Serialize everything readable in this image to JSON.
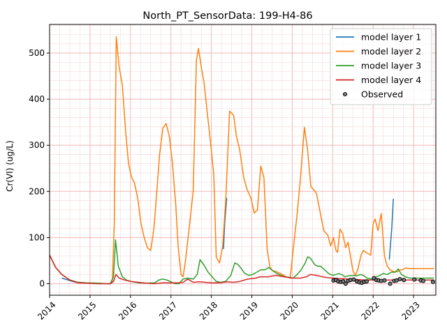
{
  "chart_data": {
    "type": "line",
    "title": "North_PT_SensorData: 199-H4-86",
    "xlabel": "",
    "ylabel": "Cr(VI) (ug/L)",
    "xlim": [
      2014.0,
      2023.55
    ],
    "ylim": [
      -25,
      562
    ],
    "x_ticks": [
      2014,
      2015,
      2016,
      2017,
      2018,
      2019,
      2020,
      2021,
      2022,
      2023
    ],
    "x_tick_labels": [
      "2014",
      "2015",
      "2016",
      "2017",
      "2018",
      "2019",
      "2020",
      "2021",
      "2022",
      "2023"
    ],
    "y_ticks": [
      0,
      100,
      200,
      300,
      400,
      500
    ],
    "y_tick_labels": [
      "0",
      "100",
      "200",
      "300",
      "400",
      "500"
    ],
    "grid": true,
    "legend_position": "top-right",
    "series": [
      {
        "name": "model layer 1",
        "color": "#1f77b4",
        "segments": [
          [
            [
              2014.3,
              12
            ],
            [
              2014.45,
              8
            ],
            [
              2014.6,
              4
            ],
            [
              2014.7,
              2
            ]
          ],
          [
            [
              2018.3,
              75
            ],
            [
              2018.33,
              130
            ],
            [
              2018.38,
              186
            ]
          ],
          [
            [
              2022.4,
              52
            ],
            [
              2022.46,
              120
            ],
            [
              2022.5,
              184
            ]
          ]
        ]
      },
      {
        "name": "model layer 2",
        "color": "#ff7f0e",
        "x": [
          2014.0,
          2014.15,
          2014.3,
          2014.5,
          2014.7,
          2014.9,
          2015.2,
          2015.4,
          2015.5,
          2015.55,
          2015.6,
          2015.65,
          2015.72,
          2015.8,
          2015.88,
          2015.95,
          2016.02,
          2016.1,
          2016.18,
          2016.26,
          2016.34,
          2016.42,
          2016.5,
          2016.58,
          2016.66,
          2016.72,
          2016.8,
          2016.88,
          2016.96,
          2017.04,
          2017.12,
          2017.18,
          2017.25,
          2017.3,
          2017.36,
          2017.45,
          2017.55,
          2017.63,
          2017.68,
          2017.76,
          2017.82,
          2017.9,
          2018.0,
          2018.06,
          2018.12,
          2018.2,
          2018.28,
          2018.36,
          2018.45,
          2018.55,
          2018.62,
          2018.7,
          2018.8,
          2018.88,
          2018.98,
          2019.06,
          2019.14,
          2019.22,
          2019.3,
          2019.38,
          2019.45,
          2019.52,
          2019.58,
          2019.66,
          2019.75,
          2019.85,
          2019.95,
          2020.05,
          2020.12,
          2020.2,
          2020.3,
          2020.38,
          2020.46,
          2020.52,
          2020.6,
          2020.7,
          2020.78,
          2020.88,
          2020.95,
          2021.02,
          2021.08,
          2021.12,
          2021.18,
          2021.25,
          2021.32,
          2021.38,
          2021.44,
          2021.5,
          2021.56,
          2021.62,
          2021.7,
          2021.76,
          2021.82,
          2021.88,
          2021.94,
          2022.0,
          2022.05,
          2022.12,
          2022.2,
          2022.28,
          2022.35,
          2022.42,
          2022.48,
          2022.54,
          2022.6,
          2022.66,
          2022.72,
          2022.8,
          2022.88,
          2022.96,
          2023.05,
          2023.15,
          2023.25,
          2023.33,
          2023.42,
          2023.5
        ],
        "values": [
          62,
          35,
          20,
          8,
          3,
          2,
          1,
          0,
          0,
          2,
          130,
          535,
          470,
          430,
          330,
          262,
          232,
          218,
          185,
          130,
          100,
          78,
          72,
          120,
          210,
          280,
          337,
          347,
          320,
          260,
          170,
          80,
          20,
          15,
          50,
          120,
          200,
          485,
          510,
          465,
          435,
          370,
          290,
          235,
          58,
          45,
          80,
          190,
          374,
          365,
          320,
          290,
          230,
          205,
          185,
          153,
          160,
          255,
          230,
          75,
          35,
          28,
          27,
          24,
          20,
          15,
          12,
          95,
          150,
          225,
          339,
          290,
          210,
          205,
          195,
          150,
          115,
          105,
          82,
          100,
          72,
          68,
          118,
          108,
          78,
          90,
          60,
          28,
          18,
          30,
          62,
          72,
          68,
          65,
          62,
          130,
          140,
          115,
          152,
          60,
          38,
          30,
          27,
          26,
          26,
          30,
          30,
          34,
          33,
          33,
          33,
          33,
          33,
          33,
          33,
          33
        ],
        "xmax": 2023.5
      },
      {
        "name": "model layer 3",
        "color": "#2ca02c",
        "x": [
          2014.0,
          2014.15,
          2014.3,
          2014.5,
          2014.7,
          2014.9,
          2015.2,
          2015.4,
          2015.5,
          2015.58,
          2015.63,
          2015.7,
          2015.8,
          2015.9,
          2016.05,
          2016.2,
          2016.4,
          2016.6,
          2016.7,
          2016.8,
          2016.9,
          2017.0,
          2017.1,
          2017.2,
          2017.3,
          2017.42,
          2017.55,
          2017.65,
          2017.72,
          2017.82,
          2017.92,
          2018.02,
          2018.12,
          2018.22,
          2018.35,
          2018.48,
          2018.58,
          2018.65,
          2018.72,
          2018.82,
          2018.92,
          2019.02,
          2019.12,
          2019.22,
          2019.32,
          2019.42,
          2019.52,
          2019.62,
          2019.72,
          2019.82,
          2019.92,
          2020.02,
          2020.12,
          2020.22,
          2020.32,
          2020.38,
          2020.45,
          2020.55,
          2020.62,
          2020.7,
          2020.8,
          2020.9,
          2021.0,
          2021.08,
          2021.15,
          2021.22,
          2021.3,
          2021.4,
          2021.5,
          2021.6,
          2021.68,
          2021.76,
          2021.85,
          2021.95,
          2022.05,
          2022.15,
          2022.25,
          2022.35,
          2022.45,
          2022.55,
          2022.62,
          2022.7,
          2022.8,
          2022.9,
          2023.0,
          2023.1,
          2023.2,
          2023.3,
          2023.4,
          2023.5
        ],
        "values": [
          62,
          35,
          20,
          8,
          3,
          2,
          1,
          0,
          0,
          15,
          95,
          38,
          15,
          8,
          4,
          2,
          1,
          2,
          8,
          10,
          8,
          4,
          0,
          0,
          10,
          12,
          10,
          20,
          52,
          40,
          25,
          15,
          5,
          3,
          5,
          18,
          45,
          42,
          35,
          23,
          18,
          20,
          25,
          30,
          30,
          35,
          28,
          22,
          18,
          15,
          14,
          12,
          20,
          30,
          45,
          58,
          55,
          42,
          38,
          38,
          30,
          22,
          18,
          20,
          22,
          20,
          15,
          17,
          18,
          17,
          20,
          18,
          12,
          10,
          14,
          17,
          22,
          20,
          25,
          25,
          32,
          20,
          15,
          12,
          12,
          12,
          12,
          12,
          12,
          12
        ],
        "xmax": 2023.5
      },
      {
        "name": "model layer 4",
        "color": "#d62728",
        "x": [
          2014.0,
          2014.15,
          2014.3,
          2014.5,
          2014.7,
          2014.9,
          2015.2,
          2015.4,
          2015.5,
          2015.58,
          2015.64,
          2015.72,
          2015.85,
          2016.0,
          2016.2,
          2016.4,
          2016.6,
          2016.8,
          2017.0,
          2017.2,
          2017.3,
          2017.42,
          2017.55,
          2017.7,
          2017.85,
          2018.0,
          2018.2,
          2018.4,
          2018.55,
          2018.7,
          2018.9,
          2019.1,
          2019.2,
          2019.4,
          2019.6,
          2019.8,
          2020.0,
          2020.2,
          2020.35,
          2020.45,
          2020.6,
          2020.8,
          2021.0,
          2021.2,
          2021.4,
          2021.6,
          2021.8,
          2022.0,
          2022.2,
          2022.4,
          2022.6,
          2022.8,
          2023.0,
          2023.2,
          2023.5
        ],
        "values": [
          62,
          35,
          20,
          8,
          2,
          1,
          0,
          0,
          0,
          5,
          20,
          12,
          8,
          5,
          3,
          1,
          0,
          2,
          2,
          2,
          3,
          10,
          3,
          4,
          3,
          2,
          2,
          4,
          3,
          5,
          10,
          12,
          15,
          15,
          18,
          15,
          12,
          12,
          15,
          20,
          18,
          14,
          12,
          11,
          10,
          9,
          8,
          8,
          8,
          8,
          8,
          8,
          8,
          8,
          8
        ],
        "xmax": 2023.5
      }
    ],
    "observed": {
      "name": "Observed",
      "points": [
        [
          2021.02,
          7
        ],
        [
          2021.08,
          8
        ],
        [
          2021.14,
          5
        ],
        [
          2021.2,
          4
        ],
        [
          2021.26,
          5
        ],
        [
          2021.32,
          0
        ],
        [
          2021.38,
          6
        ],
        [
          2021.44,
          8
        ],
        [
          2021.52,
          9
        ],
        [
          2021.6,
          5
        ],
        [
          2021.66,
          3
        ],
        [
          2021.72,
          2
        ],
        [
          2021.78,
          4
        ],
        [
          2021.84,
          5
        ],
        [
          2022.02,
          12
        ],
        [
          2022.08,
          8
        ],
        [
          2022.14,
          7
        ],
        [
          2022.2,
          6
        ],
        [
          2022.28,
          7
        ],
        [
          2022.42,
          0
        ],
        [
          2022.52,
          6
        ],
        [
          2022.58,
          7
        ],
        [
          2022.66,
          10
        ],
        [
          2022.76,
          8
        ],
        [
          2023.02,
          9
        ],
        [
          2023.18,
          7
        ],
        [
          2023.24,
          6
        ],
        [
          2023.48,
          4
        ]
      ]
    }
  }
}
